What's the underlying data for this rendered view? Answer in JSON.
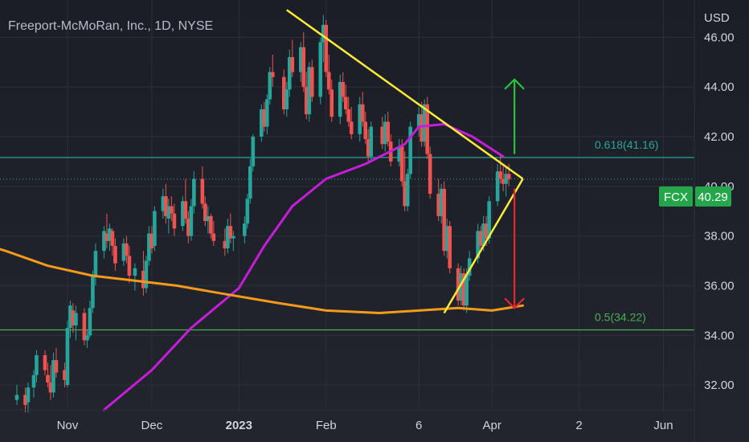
{
  "header": {
    "title": "Freeport-McMoRan, Inc., 1D, NYSE",
    "currency": "USD"
  },
  "badges": {
    "symbol": "FCX",
    "last_price": "40.29"
  },
  "colors": {
    "background": "#1f212b",
    "grid": "#2c2f3a",
    "up_candle": "#26a69a",
    "down_candle": "#ef5350",
    "ma_short": "#c41fd6",
    "ma_long": "#f59a1a",
    "trendline": "#ffeb3b",
    "fib_0618": "#26a69a",
    "fib_05": "#4caf50",
    "arrow_up": "#29c33b",
    "arrow_down": "#e8262c",
    "badge_bg": "#26a64a",
    "axis_text": "#d1d4dc"
  },
  "chart_data": {
    "type": "candlestick",
    "symbol": "FCX",
    "title": "Freeport-McMoRan, Inc., 1D, NYSE",
    "y_axis_label": "USD",
    "ylim": [
      31.0,
      47.5
    ],
    "y_ticks": [
      "32.00",
      "34.00",
      "36.00",
      "38.00",
      "40.00",
      "42.00",
      "44.00",
      "46.00"
    ],
    "x_tick_labels": [
      "Nov",
      "Dec",
      "2023",
      "Feb",
      "6",
      "Apr",
      "2",
      "Jun"
    ],
    "x_tick_dates": [
      "2022-11-01",
      "2022-12-01",
      "2023-01-01",
      "2023-02-01",
      "2023-03-06",
      "2023-04-01",
      "2023-05-02",
      "2023-06-01"
    ],
    "last_price": 40.29,
    "fib_levels": [
      {
        "label": "0.618(41.16)",
        "value": 41.16
      },
      {
        "label": "0.5(34.22)",
        "value": 34.22
      }
    ],
    "trendlines": [
      {
        "from": [
          "2023-01-18",
          47.1
        ],
        "to": [
          "2023-04-12",
          40.3
        ]
      },
      {
        "from": [
          "2023-03-15",
          34.9
        ],
        "to": [
          "2023-04-12",
          40.3
        ]
      }
    ],
    "arrows": [
      {
        "direction": "up",
        "date": "2023-04-09",
        "from": 41.3,
        "to": 44.3
      },
      {
        "direction": "down",
        "date": "2023-04-09",
        "from": 39.9,
        "to": 35.1
      }
    ],
    "moving_averages": [
      {
        "name": "MA short",
        "color": "#c41fd6",
        "points": [
          [
            "2022-11-14",
            31.0
          ],
          [
            "2022-12-01",
            32.6
          ],
          [
            "2022-12-15",
            34.3
          ],
          [
            "2023-01-01",
            35.9
          ],
          [
            "2023-01-10",
            37.6
          ],
          [
            "2023-01-20",
            39.2
          ],
          [
            "2023-02-01",
            40.3
          ],
          [
            "2023-02-15",
            40.9
          ],
          [
            "2023-03-01",
            41.7
          ],
          [
            "2023-03-06",
            42.4
          ],
          [
            "2023-03-15",
            42.5
          ],
          [
            "2023-03-25",
            42.0
          ],
          [
            "2023-04-05",
            41.2
          ]
        ]
      },
      {
        "name": "MA long",
        "color": "#f59a1a",
        "points": [
          [
            "2022-09-20",
            38.1
          ],
          [
            "2022-10-10",
            37.4
          ],
          [
            "2022-10-25",
            36.8
          ],
          [
            "2022-11-10",
            36.4
          ],
          [
            "2022-11-25",
            36.2
          ],
          [
            "2022-12-10",
            36.0
          ],
          [
            "2022-12-25",
            35.7
          ],
          [
            "2023-01-15",
            35.3
          ],
          [
            "2023-02-01",
            35.0
          ],
          [
            "2023-02-20",
            34.9
          ],
          [
            "2023-03-06",
            35.0
          ],
          [
            "2023-03-20",
            35.1
          ],
          [
            "2023-04-01",
            35.0
          ],
          [
            "2023-04-12",
            35.2
          ]
        ]
      }
    ],
    "candles": [
      [
        "2022-10-14",
        31.4,
        32.0,
        31.2,
        31.6
      ],
      [
        "2022-10-17",
        31.6,
        31.9,
        30.9,
        31.2
      ],
      [
        "2022-10-18",
        31.3,
        32.1,
        30.9,
        31.9
      ],
      [
        "2022-10-20",
        31.9,
        32.6,
        31.5,
        32.4
      ],
      [
        "2022-10-21",
        32.4,
        33.4,
        32.1,
        33.2
      ],
      [
        "2022-10-24",
        33.2,
        33.4,
        32.4,
        32.6
      ],
      [
        "2022-10-25",
        32.4,
        32.9,
        31.9,
        32.1
      ],
      [
        "2022-10-26",
        32.1,
        32.8,
        31.4,
        31.7
      ],
      [
        "2022-10-27",
        31.7,
        33.3,
        31.5,
        33.0
      ],
      [
        "2022-10-28",
        33.0,
        33.5,
        32.3,
        32.5
      ],
      [
        "2022-10-31",
        32.6,
        32.9,
        31.9,
        32.2
      ],
      [
        "2022-11-01",
        32.0,
        34.6,
        31.9,
        34.3
      ],
      [
        "2022-11-02",
        34.3,
        35.4,
        33.9,
        35.2
      ],
      [
        "2022-11-03",
        35.0,
        35.3,
        34.1,
        34.4
      ],
      [
        "2022-11-04",
        34.4,
        35.2,
        33.8,
        34.9
      ],
      [
        "2022-11-07",
        34.9,
        35.1,
        33.6,
        33.8
      ],
      [
        "2022-11-08",
        33.8,
        34.2,
        33.5,
        34.0
      ],
      [
        "2022-11-09",
        34.0,
        35.4,
        33.9,
        35.1
      ],
      [
        "2022-11-10",
        35.1,
        36.6,
        34.9,
        36.4
      ],
      [
        "2022-11-11",
        36.4,
        37.7,
        36.0,
        37.4
      ],
      [
        "2022-11-14",
        37.4,
        38.4,
        37.1,
        38.2
      ],
      [
        "2022-11-15",
        38.1,
        38.9,
        37.5,
        37.8
      ],
      [
        "2022-11-16",
        37.8,
        38.5,
        37.4,
        38.3
      ],
      [
        "2022-11-17",
        38.2,
        38.3,
        37.2,
        37.6
      ],
      [
        "2022-11-18",
        37.6,
        37.9,
        36.6,
        36.9
      ],
      [
        "2022-11-21",
        37.0,
        37.9,
        36.8,
        37.7
      ],
      [
        "2022-11-22",
        37.7,
        38.0,
        36.9,
        37.2
      ],
      [
        "2022-11-23",
        37.2,
        37.6,
        36.1,
        36.4
      ],
      [
        "2022-11-25",
        36.4,
        36.9,
        35.8,
        36.7
      ],
      [
        "2022-11-28",
        36.6,
        37.4,
        35.6,
        35.9
      ],
      [
        "2022-11-29",
        35.9,
        37.2,
        35.7,
        37.0
      ],
      [
        "2022-11-30",
        37.0,
        38.4,
        36.8,
        38.1
      ],
      [
        "2022-12-01",
        38.1,
        38.4,
        37.3,
        37.5
      ],
      [
        "2022-12-02",
        37.6,
        39.2,
        37.4,
        39.0
      ],
      [
        "2022-12-05",
        39.0,
        39.9,
        38.7,
        39.6
      ],
      [
        "2022-12-06",
        39.6,
        40.1,
        38.5,
        38.8
      ],
      [
        "2022-12-07",
        38.7,
        39.5,
        38.1,
        39.2
      ],
      [
        "2022-12-08",
        39.2,
        39.6,
        38.6,
        38.9
      ],
      [
        "2022-12-09",
        38.9,
        39.3,
        38.0,
        38.3
      ],
      [
        "2022-12-12",
        38.4,
        39.6,
        38.2,
        39.4
      ],
      [
        "2022-12-13",
        39.4,
        40.3,
        38.5,
        38.7
      ],
      [
        "2022-12-14",
        38.7,
        39.0,
        37.7,
        38.0
      ],
      [
        "2022-12-15",
        38.0,
        39.5,
        37.8,
        39.2
      ],
      [
        "2022-12-16",
        39.2,
        40.6,
        38.9,
        40.3
      ],
      [
        "2022-12-19",
        40.3,
        40.8,
        39.1,
        39.3
      ],
      [
        "2022-12-20",
        39.3,
        39.6,
        38.4,
        38.6
      ],
      [
        "2022-12-21",
        38.6,
        39.2,
        38.1,
        38.8
      ],
      [
        "2022-12-22",
        38.8,
        38.9,
        37.9,
        38.1
      ],
      [
        "2022-12-23",
        38.1,
        38.6,
        37.6,
        37.8
      ],
      [
        "2022-12-27",
        37.8,
        38.3,
        37.2,
        37.5
      ],
      [
        "2022-12-28",
        37.5,
        38.7,
        37.3,
        38.4
      ],
      [
        "2022-12-29",
        38.4,
        38.9,
        37.7,
        37.9
      ],
      [
        "2022-12-30",
        37.9,
        38.2,
        37.4,
        38.0
      ],
      [
        "2023-01-03",
        38.0,
        38.8,
        37.7,
        38.5
      ],
      [
        "2023-01-04",
        38.5,
        39.7,
        38.3,
        39.5
      ],
      [
        "2023-01-05",
        39.5,
        41.1,
        39.3,
        40.8
      ],
      [
        "2023-01-06",
        40.8,
        42.1,
        40.6,
        42.0
      ],
      [
        "2023-01-09",
        42.0,
        43.3,
        41.8,
        43.1
      ],
      [
        "2023-01-10",
        43.1,
        43.4,
        42.2,
        42.4
      ],
      [
        "2023-01-11",
        42.4,
        43.7,
        42.1,
        43.5
      ],
      [
        "2023-01-12",
        43.5,
        44.8,
        43.3,
        44.6
      ],
      [
        "2023-01-13",
        44.6,
        45.3,
        44.0,
        44.4
      ],
      [
        "2023-01-17",
        44.4,
        44.7,
        42.9,
        43.1
      ],
      [
        "2023-01-18",
        43.1,
        44.2,
        42.8,
        43.9
      ],
      [
        "2023-01-19",
        43.9,
        45.5,
        43.6,
        45.2
      ],
      [
        "2023-01-20",
        45.2,
        45.9,
        44.4,
        44.6
      ],
      [
        "2023-01-23",
        44.6,
        45.8,
        44.2,
        45.6
      ],
      [
        "2023-01-24",
        45.6,
        46.2,
        43.8,
        44.0
      ],
      [
        "2023-01-25",
        44.0,
        44.6,
        42.7,
        42.9
      ],
      [
        "2023-01-26",
        42.9,
        45.0,
        42.6,
        44.8
      ],
      [
        "2023-01-27",
        44.8,
        45.1,
        43.4,
        43.6
      ],
      [
        "2023-01-30",
        43.6,
        46.0,
        43.3,
        45.8
      ],
      [
        "2023-01-31",
        45.8,
        46.9,
        45.0,
        46.5
      ],
      [
        "2023-02-01",
        46.5,
        46.7,
        44.4,
        44.6
      ],
      [
        "2023-02-02",
        44.6,
        45.3,
        43.7,
        43.9
      ],
      [
        "2023-02-03",
        43.9,
        44.3,
        42.6,
        42.8
      ],
      [
        "2023-02-06",
        42.8,
        44.5,
        42.5,
        44.2
      ],
      [
        "2023-02-07",
        44.2,
        44.6,
        43.4,
        43.6
      ],
      [
        "2023-02-08",
        43.6,
        44.1,
        42.9,
        43.1
      ],
      [
        "2023-02-09",
        43.1,
        43.6,
        42.4,
        42.6
      ],
      [
        "2023-02-10",
        42.6,
        43.2,
        41.9,
        42.1
      ],
      [
        "2023-02-13",
        42.1,
        43.6,
        41.8,
        43.3
      ],
      [
        "2023-02-14",
        43.3,
        43.8,
        42.4,
        42.6
      ],
      [
        "2023-02-15",
        42.6,
        43.0,
        41.7,
        41.9
      ],
      [
        "2023-02-16",
        41.9,
        42.3,
        41.0,
        41.2
      ],
      [
        "2023-02-17",
        41.2,
        42.6,
        41.0,
        42.4
      ],
      [
        "2023-02-21",
        42.4,
        42.8,
        41.5,
        41.7
      ],
      [
        "2023-02-22",
        41.7,
        42.9,
        41.4,
        42.6
      ],
      [
        "2023-02-23",
        42.6,
        43.0,
        41.6,
        41.8
      ],
      [
        "2023-02-24",
        41.8,
        42.1,
        40.8,
        41.0
      ],
      [
        "2023-02-27",
        41.0,
        41.9,
        40.8,
        41.6
      ],
      [
        "2023-02-28",
        41.6,
        41.9,
        40.0,
        40.2
      ],
      [
        "2023-03-01",
        40.2,
        41.4,
        39.0,
        39.2
      ],
      [
        "2023-03-02",
        39.2,
        40.7,
        39.0,
        40.5
      ],
      [
        "2023-03-03",
        40.5,
        42.6,
        40.3,
        42.4
      ],
      [
        "2023-03-06",
        42.4,
        43.2,
        42.0,
        42.9
      ],
      [
        "2023-03-07",
        42.9,
        43.4,
        41.6,
        41.8
      ],
      [
        "2023-03-08",
        41.8,
        43.5,
        41.6,
        43.3
      ],
      [
        "2023-03-09",
        43.3,
        43.6,
        41.1,
        41.3
      ],
      [
        "2023-03-10",
        41.3,
        41.6,
        39.5,
        39.7
      ],
      [
        "2023-03-13",
        39.7,
        40.3,
        38.6,
        38.8
      ],
      [
        "2023-03-14",
        38.8,
        40.1,
        38.5,
        39.9
      ],
      [
        "2023-03-15",
        39.9,
        40.2,
        37.2,
        37.4
      ],
      [
        "2023-03-16",
        37.4,
        38.7,
        37.1,
        38.4
      ],
      [
        "2023-03-17",
        38.4,
        38.6,
        36.5,
        36.7
      ],
      [
        "2023-03-20",
        36.7,
        36.9,
        35.2,
        35.4
      ],
      [
        "2023-03-21",
        35.4,
        36.8,
        35.2,
        36.5
      ],
      [
        "2023-03-22",
        36.5,
        36.7,
        35.0,
        35.2
      ],
      [
        "2023-03-23",
        35.2,
        36.7,
        34.9,
        36.4
      ],
      [
        "2023-03-24",
        36.4,
        37.4,
        36.2,
        37.1
      ],
      [
        "2023-03-27",
        37.1,
        38.5,
        36.9,
        38.2
      ],
      [
        "2023-03-28",
        38.2,
        38.4,
        37.4,
        37.6
      ],
      [
        "2023-03-29",
        37.6,
        38.8,
        37.4,
        38.5
      ],
      [
        "2023-03-30",
        38.5,
        38.8,
        37.6,
        37.9
      ],
      [
        "2023-03-31",
        37.9,
        39.6,
        37.7,
        39.4
      ],
      [
        "2023-04-03",
        39.4,
        40.9,
        39.2,
        40.6
      ],
      [
        "2023-04-04",
        40.6,
        41.3,
        40.1,
        40.3
      ],
      [
        "2023-04-05",
        40.3,
        40.9,
        39.8,
        40.1
      ],
      [
        "2023-04-06",
        40.1,
        40.8,
        39.6,
        40.5
      ],
      [
        "2023-04-07",
        40.5,
        40.9,
        40.0,
        40.29
      ]
    ]
  }
}
